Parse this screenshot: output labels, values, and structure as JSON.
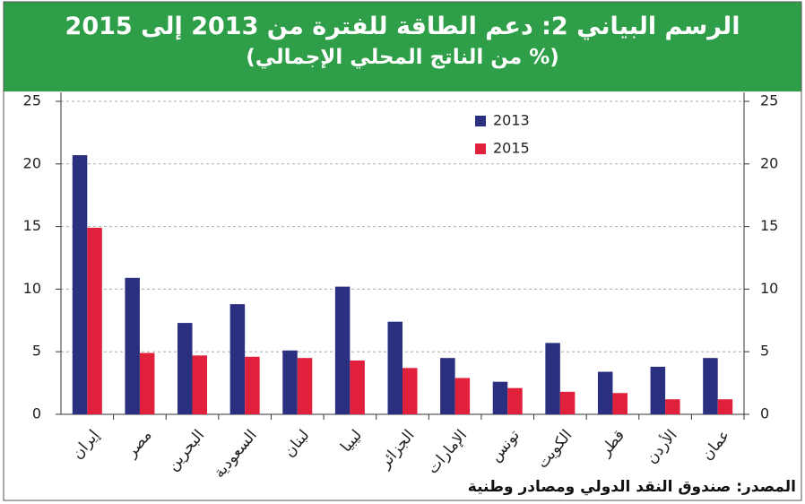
{
  "chart_data": {
    "type": "bar",
    "title": "الرسم البياني 2: دعم الطاقة للفترة من 2013 إلى 2015",
    "subtitle": "(% من الناتج المحلي الإجمالي)",
    "source": "المصدر: صندوق النقد الدولي ومصادر وطنية",
    "categories": [
      "إيران",
      "مصر",
      "البحرين",
      "السعودية",
      "لبنان",
      "ليبيا",
      "الجزائر",
      "الإمارات",
      "تونس",
      "الكويت",
      "قطر",
      "الأردن",
      "عمان"
    ],
    "series": [
      {
        "name": "2013",
        "color": "#2b2f80",
        "values": [
          20.7,
          10.9,
          7.3,
          8.8,
          5.1,
          10.2,
          7.4,
          4.5,
          2.6,
          5.7,
          3.4,
          3.8,
          4.5
        ]
      },
      {
        "name": "2015",
        "color": "#e1203b",
        "values": [
          14.9,
          4.9,
          4.7,
          4.6,
          4.5,
          4.3,
          3.7,
          2.9,
          2.1,
          1.8,
          1.7,
          1.2,
          1.2
        ]
      }
    ],
    "ylim": [
      0,
      25
    ],
    "yticks": [
      0,
      5,
      10,
      15,
      20,
      25
    ],
    "grid": true
  }
}
